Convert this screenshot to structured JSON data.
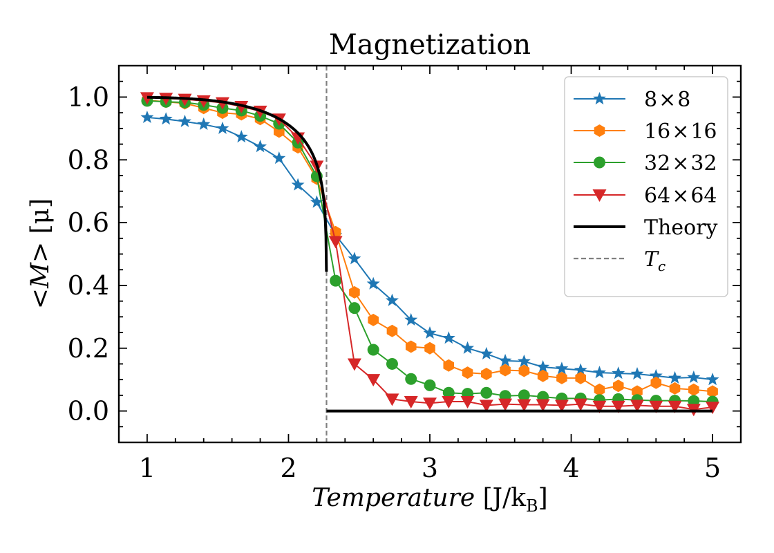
{
  "chart_data": {
    "type": "line",
    "title": "Magnetization",
    "xlabel": {
      "main": "Temperature",
      "unit_open": "[J/k",
      "unit_sub": "B",
      "unit_close": "]"
    },
    "ylabel": {
      "main": "<M>",
      "unit": "[μ]"
    },
    "xlim": [
      0.8,
      5.2
    ],
    "ylim": [
      -0.1,
      1.1
    ],
    "x_ticks": [
      1,
      2,
      3,
      4,
      5
    ],
    "x_tick_labels": [
      "1",
      "2",
      "3",
      "4",
      "5"
    ],
    "y_ticks": [
      0.0,
      0.2,
      0.4,
      0.6,
      0.8,
      1.0
    ],
    "y_tick_labels": [
      "0.0",
      "0.2",
      "0.4",
      "0.6",
      "0.8",
      "1.0"
    ],
    "grid": false,
    "legend_placement": "top-right",
    "x": [
      1.0,
      1.1333,
      1.2667,
      1.4,
      1.5333,
      1.6667,
      1.8,
      1.9333,
      2.0667,
      2.2,
      2.3333,
      2.4667,
      2.6,
      2.7333,
      2.8667,
      3.0,
      3.1333,
      3.2667,
      3.4,
      3.5333,
      3.6667,
      3.8,
      3.9333,
      4.0667,
      4.2,
      4.3333,
      4.4667,
      4.6,
      4.7333,
      4.8667,
      5.0
    ],
    "series": [
      {
        "name": "8×8",
        "label_parts": [
          "8",
          "8"
        ],
        "color": "#1f77b4",
        "marker": "star",
        "values": [
          0.935,
          0.93,
          0.922,
          0.913,
          0.9,
          0.873,
          0.842,
          0.805,
          0.72,
          0.665,
          0.56,
          0.485,
          0.405,
          0.352,
          0.29,
          0.248,
          0.232,
          0.2,
          0.182,
          0.16,
          0.158,
          0.14,
          0.135,
          0.13,
          0.122,
          0.12,
          0.118,
          0.112,
          0.105,
          0.107,
          0.1
        ]
      },
      {
        "name": "16×16",
        "label_parts": [
          "16",
          "16"
        ],
        "color": "#ff7f0e",
        "marker": "hexagon",
        "values": [
          0.99,
          0.985,
          0.98,
          0.965,
          0.95,
          0.945,
          0.93,
          0.89,
          0.84,
          0.74,
          0.57,
          0.378,
          0.29,
          0.255,
          0.205,
          0.2,
          0.145,
          0.122,
          0.118,
          0.13,
          0.128,
          0.112,
          0.105,
          0.105,
          0.068,
          0.08,
          0.062,
          0.09,
          0.072,
          0.068,
          0.062
        ]
      },
      {
        "name": "32×32",
        "label_parts": [
          "32",
          "32"
        ],
        "color": "#2ca02c",
        "marker": "circle",
        "values": [
          0.988,
          0.985,
          0.983,
          0.975,
          0.965,
          0.957,
          0.94,
          0.915,
          0.855,
          0.748,
          0.415,
          0.328,
          0.195,
          0.15,
          0.102,
          0.082,
          0.058,
          0.055,
          0.058,
          0.048,
          0.05,
          0.045,
          0.04,
          0.04,
          0.035,
          0.038,
          0.035,
          0.033,
          0.033,
          0.032,
          0.03
        ]
      },
      {
        "name": "64×64",
        "label_parts": [
          "64",
          "64"
        ],
        "color": "#d62728",
        "marker": "triangle-down",
        "values": [
          0.998,
          0.996,
          0.993,
          0.988,
          0.982,
          0.97,
          0.955,
          0.93,
          0.87,
          0.78,
          0.54,
          0.15,
          0.1,
          0.038,
          0.03,
          0.025,
          0.03,
          0.03,
          0.018,
          0.022,
          0.02,
          0.02,
          0.018,
          0.022,
          0.015,
          0.015,
          0.018,
          0.015,
          0.015,
          0.005,
          0.012
        ]
      }
    ],
    "theory": {
      "name": "Theory",
      "color": "#000000",
      "tc": 2.269,
      "start": 1.0,
      "end": 5.0
    },
    "tc_line": {
      "name": "T",
      "sub": "c",
      "x": 2.269,
      "color": "#808080"
    }
  }
}
